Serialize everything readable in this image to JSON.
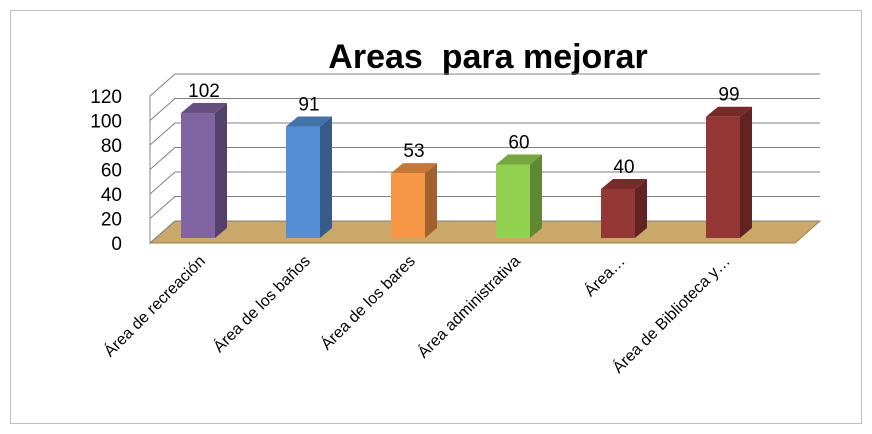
{
  "chart_data": {
    "type": "bar3d",
    "title": "Areas  para mejorar",
    "categories": [
      "Área de recreación",
      "Área de los baños",
      "Área de los bares",
      "Área administrativa",
      "Área…",
      "Área de Biblioteca y…"
    ],
    "values": [
      102,
      91,
      53,
      60,
      40,
      99
    ],
    "colors": [
      "#8064a2",
      "#558ed5",
      "#f79646",
      "#92d050",
      "#953735",
      "#953735"
    ],
    "ylim": [
      0,
      120
    ],
    "yticks": [
      0,
      20,
      40,
      60,
      80,
      100,
      120
    ],
    "grid": true
  }
}
